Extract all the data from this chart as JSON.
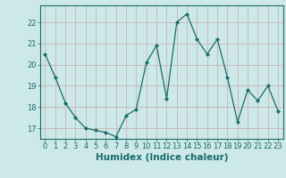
{
  "x": [
    0,
    1,
    2,
    3,
    4,
    5,
    6,
    7,
    8,
    9,
    10,
    11,
    12,
    13,
    14,
    15,
    16,
    17,
    18,
    19,
    20,
    21,
    22,
    23
  ],
  "y": [
    20.5,
    19.4,
    18.2,
    17.5,
    17.0,
    16.9,
    16.8,
    16.6,
    17.6,
    17.9,
    20.1,
    20.9,
    18.4,
    22.0,
    22.4,
    21.2,
    20.5,
    21.2,
    19.4,
    17.3,
    18.8,
    18.3,
    19.0,
    17.8
  ],
  "line_color": "#1a6b6b",
  "marker": "D",
  "markersize": 2,
  "bg_color": "#cce8e8",
  "grid_color": "#b8c8c8",
  "xlabel": "Humidex (Indice chaleur)",
  "ylim": [
    16.5,
    22.8
  ],
  "yticks": [
    17,
    18,
    19,
    20,
    21,
    22
  ],
  "xticks": [
    0,
    1,
    2,
    3,
    4,
    5,
    6,
    7,
    8,
    9,
    10,
    11,
    12,
    13,
    14,
    15,
    16,
    17,
    18,
    19,
    20,
    21,
    22,
    23
  ],
  "tick_fontsize": 6,
  "xlabel_fontsize": 7.5
}
